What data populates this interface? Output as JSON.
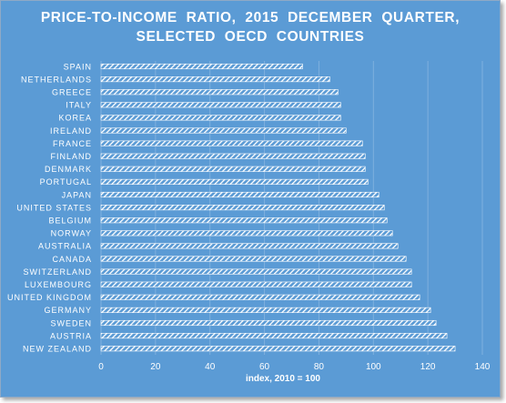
{
  "chart_data": {
    "type": "bar",
    "orientation": "horizontal",
    "title_line1": "PRICE-TO-INCOME  RATIO,  2015  DECEMBER  QUARTER,",
    "title_line2": "SELECTED  OECD  COUNTRIES",
    "xlabel": "index, 2010 = 100",
    "ylabel": "",
    "xlim": [
      0,
      140
    ],
    "xticks": [
      0,
      20,
      40,
      60,
      80,
      100,
      120,
      140
    ],
    "grid": true,
    "legend": "none",
    "categories": [
      "SPAIN",
      "NETHERLANDS",
      "GREECE",
      "ITALY",
      "KOREA",
      "IRELAND",
      "FRANCE",
      "FINLAND",
      "DENMARK",
      "PORTUGAL",
      "JAPAN",
      "UNITED STATES",
      "BELGIUM",
      "NORWAY",
      "AUSTRALIA",
      "CANADA",
      "SWITZERLAND",
      "LUXEMBOURG",
      "UNITED KINGDOM",
      "GERMANY",
      "SWEDEN",
      "AUSTRIA",
      "NEW ZEALAND"
    ],
    "values": [
      74,
      84,
      87,
      88,
      88,
      90,
      96,
      97,
      97,
      98,
      102,
      104,
      105,
      107,
      109,
      112,
      114,
      114,
      117,
      121,
      123,
      127,
      130
    ],
    "colors": {
      "background": "#5b9bd5",
      "bar": "#ffffff",
      "text": "#ffffff",
      "grid": "#7fb0de"
    }
  }
}
